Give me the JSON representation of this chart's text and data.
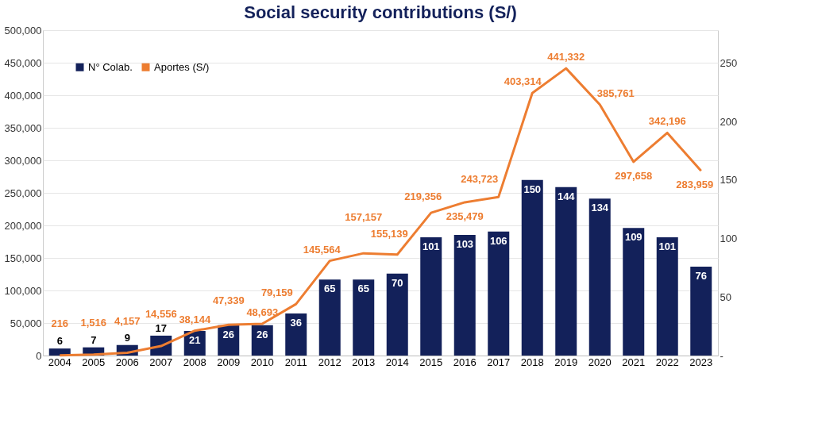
{
  "chart_data": {
    "type": "bar",
    "title": "Social security contributions (S/)",
    "categories": [
      "2004",
      "2005",
      "2006",
      "2007",
      "2008",
      "2009",
      "2010",
      "2011",
      "2012",
      "2013",
      "2014",
      "2015",
      "2016",
      "2017",
      "2018",
      "2019",
      "2020",
      "2021",
      "2022",
      "2023"
    ],
    "series": [
      {
        "name": "N° Colab.",
        "axis": "y2",
        "color": "#13215a",
        "values": [
          6,
          7,
          9,
          17,
          21,
          26,
          26,
          36,
          65,
          65,
          70,
          101,
          103,
          106,
          150,
          144,
          134,
          109,
          101,
          76
        ]
      },
      {
        "name": "Aportes (S/)",
        "type": "line",
        "color": "#ed7d31",
        "values": [
          216,
          1516,
          4157,
          14556,
          38144,
          47339,
          48693,
          79159,
          145564,
          157157,
          155139,
          219356,
          235479,
          243723,
          403314,
          441332,
          385761,
          297658,
          342196,
          283959
        ],
        "value_labels": [
          "216",
          "1,516",
          "4,157",
          "14,556",
          "38,144",
          "47,339",
          "48,693",
          "79,159",
          "145,564",
          "157,157",
          "155,139",
          "219,356",
          "235,479",
          "243,723",
          "403,314",
          "441,332",
          "385,761",
          "297,658",
          "342,196",
          "283,959"
        ]
      }
    ],
    "ylim": [
      0,
      500000
    ],
    "yticks": [
      0,
      {
        "value": 50000,
        "label": "50,000"
      },
      {
        "value": 100000,
        "label": "100,000"
      },
      {
        "value": 150000,
        "label": "150,000"
      },
      {
        "value": 200000,
        "label": "200,000"
      },
      {
        "value": 250000,
        "label": "250,000"
      },
      {
        "value": 300000,
        "label": "300,000"
      },
      {
        "value": 350000,
        "label": "350,000"
      },
      {
        "value": 400000,
        "label": "400,000"
      },
      {
        "value": 450000,
        "label": "450,000"
      },
      {
        "value": 500000,
        "label": "500,000"
      }
    ],
    "y2lim": [
      0,
      278
    ],
    "y2ticks": [
      {
        "value": 0,
        "label": "-"
      },
      50,
      100,
      150,
      200,
      250
    ],
    "data_labels": true,
    "grid": "y",
    "legend": "top left",
    "marker": "none",
    "line_style": "solid"
  }
}
